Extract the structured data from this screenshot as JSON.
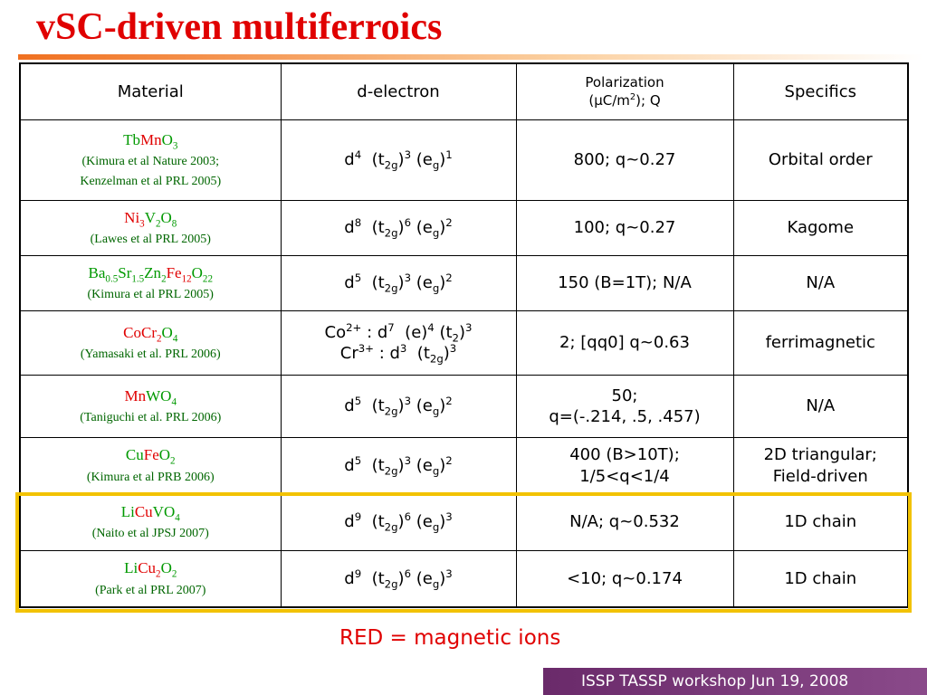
{
  "header": {
    "title": "vSC-driven multiferroics"
  },
  "table": {
    "header": [
      [
        [
          {
            "text": "Material"
          }
        ]
      ],
      [
        [
          {
            "text": "d-electron"
          }
        ]
      ],
      [
        [
          {
            "text": "Polarization"
          }
        ],
        [
          {
            "text": "(μC/m"
          },
          {
            "text": "2",
            "pos": "sup"
          },
          {
            "text": "); Q"
          }
        ]
      ],
      [
        [
          {
            "text": "Specifics"
          }
        ]
      ]
    ],
    "rows": [
      [
        [
          [
            {
              "text": "Tb",
              "color": "#009900"
            },
            {
              "text": "Mn",
              "color": "#e00000"
            },
            {
              "text": "O",
              "color": "#009900"
            },
            {
              "text": "3",
              "pos": "sub",
              "color": "#009900"
            }
          ],
          [
            {
              "text": "(Kimura et al Nature 2003;",
              "color": "#006600"
            }
          ],
          [
            {
              "text": "Kenzelman et al PRL 2005)",
              "color": "#006600"
            }
          ]
        ],
        [
          [
            {
              "text": "d"
            },
            {
              "text": "4",
              "pos": "sup"
            },
            {
              "text": "  (t"
            },
            {
              "text": "2g",
              "pos": "sub"
            },
            {
              "text": ")"
            },
            {
              "text": "3",
              "pos": "sup"
            },
            {
              "text": " (e"
            },
            {
              "text": "g",
              "pos": "sub"
            },
            {
              "text": ")"
            },
            {
              "text": "1",
              "pos": "sup"
            }
          ]
        ],
        [
          [
            {
              "text": "800; q~0.27"
            }
          ]
        ],
        [
          [
            {
              "text": "Orbital order"
            }
          ]
        ]
      ],
      [
        [
          [
            {
              "text": "Ni",
              "color": "#e00000"
            },
            {
              "text": "3",
              "pos": "sub",
              "color": "#e00000"
            },
            {
              "text": "V",
              "color": "#009900"
            },
            {
              "text": "2",
              "pos": "sub",
              "color": "#009900"
            },
            {
              "text": "O",
              "color": "#009900"
            },
            {
              "text": "8",
              "pos": "sub",
              "color": "#009900"
            }
          ],
          [
            {
              "text": "(Lawes et al PRL 2005)",
              "color": "#006600"
            }
          ]
        ],
        [
          [
            {
              "text": "d"
            },
            {
              "text": "8",
              "pos": "sup"
            },
            {
              "text": "  (t"
            },
            {
              "text": "2g",
              "pos": "sub"
            },
            {
              "text": ")"
            },
            {
              "text": "6",
              "pos": "sup"
            },
            {
              "text": " (e"
            },
            {
              "text": "g",
              "pos": "sub"
            },
            {
              "text": ")"
            },
            {
              "text": "2",
              "pos": "sup"
            }
          ]
        ],
        [
          [
            {
              "text": "100; q~0.27"
            }
          ]
        ],
        [
          [
            {
              "text": "Kagome"
            }
          ]
        ]
      ],
      [
        [
          [
            {
              "text": "Ba",
              "color": "#009900"
            },
            {
              "text": "0.5",
              "pos": "sub",
              "color": "#009900"
            },
            {
              "text": "Sr",
              "color": "#009900"
            },
            {
              "text": "1.5",
              "pos": "sub",
              "color": "#009900"
            },
            {
              "text": "Zn",
              "color": "#009900"
            },
            {
              "text": "2",
              "pos": "sub",
              "color": "#009900"
            },
            {
              "text": "Fe",
              "color": "#e00000"
            },
            {
              "text": "12",
              "pos": "sub",
              "color": "#e00000"
            },
            {
              "text": "O",
              "color": "#009900"
            },
            {
              "text": "22",
              "pos": "sub",
              "color": "#009900"
            }
          ],
          [
            {
              "text": "(Kimura et al PRL 2005)",
              "color": "#006600"
            }
          ]
        ],
        [
          [
            {
              "text": "d"
            },
            {
              "text": "5",
              "pos": "sup"
            },
            {
              "text": "  (t"
            },
            {
              "text": "2g",
              "pos": "sub"
            },
            {
              "text": ")"
            },
            {
              "text": "3",
              "pos": "sup"
            },
            {
              "text": " (e"
            },
            {
              "text": "g",
              "pos": "sub"
            },
            {
              "text": ")"
            },
            {
              "text": "2",
              "pos": "sup"
            }
          ]
        ],
        [
          [
            {
              "text": "150 (B=1T); N/A"
            }
          ]
        ],
        [
          [
            {
              "text": "N/A"
            }
          ]
        ]
      ],
      [
        [
          [
            {
              "text": "Co",
              "color": "#e00000"
            },
            {
              "text": "Cr",
              "color": "#e00000"
            },
            {
              "text": "2",
              "pos": "sub",
              "color": "#e00000"
            },
            {
              "text": "O",
              "color": "#009900"
            },
            {
              "text": "4",
              "pos": "sub",
              "color": "#009900"
            }
          ],
          [
            {
              "text": "(Yamasaki et al. PRL 2006)",
              "color": "#006600"
            }
          ]
        ],
        [
          [
            {
              "text": "Co"
            },
            {
              "text": "2+",
              "pos": "sup"
            },
            {
              "text": " : d"
            },
            {
              "text": "7",
              "pos": "sup"
            },
            {
              "text": "  (e)"
            },
            {
              "text": "4",
              "pos": "sup"
            },
            {
              "text": " (t"
            },
            {
              "text": "2",
              "pos": "sub"
            },
            {
              "text": ")"
            },
            {
              "text": "3",
              "pos": "sup"
            }
          ],
          [
            {
              "text": "Cr"
            },
            {
              "text": "3+",
              "pos": "sup"
            },
            {
              "text": " : d"
            },
            {
              "text": "3",
              "pos": "sup"
            },
            {
              "text": "  (t"
            },
            {
              "text": "2g",
              "pos": "sub"
            },
            {
              "text": ")"
            },
            {
              "text": "3",
              "pos": "sup"
            }
          ]
        ],
        [
          [
            {
              "text": "2; [qq0] q~0.63"
            }
          ]
        ],
        [
          [
            {
              "text": "ferrimagnetic"
            }
          ]
        ]
      ],
      [
        [
          [
            {
              "text": "Mn",
              "color": "#e00000"
            },
            {
              "text": "WO",
              "color": "#009900"
            },
            {
              "text": "4",
              "pos": "sub",
              "color": "#009900"
            }
          ],
          [
            {
              "text": "(Taniguchi et al. PRL 2006)",
              "color": "#006600"
            }
          ]
        ],
        [
          [
            {
              "text": "d"
            },
            {
              "text": "5",
              "pos": "sup"
            },
            {
              "text": "  (t"
            },
            {
              "text": "2g",
              "pos": "sub"
            },
            {
              "text": ")"
            },
            {
              "text": "3",
              "pos": "sup"
            },
            {
              "text": " (e"
            },
            {
              "text": "g",
              "pos": "sub"
            },
            {
              "text": ")"
            },
            {
              "text": "2",
              "pos": "sup"
            }
          ]
        ],
        [
          [
            {
              "text": "50;"
            }
          ],
          [
            {
              "text": "q=(-.214, .5, .457)"
            }
          ]
        ],
        [
          [
            {
              "text": "N/A"
            }
          ]
        ]
      ],
      [
        [
          [
            {
              "text": "Cu",
              "color": "#009900"
            },
            {
              "text": "Fe",
              "color": "#e00000"
            },
            {
              "text": "O",
              "color": "#009900"
            },
            {
              "text": "2",
              "pos": "sub",
              "color": "#009900"
            }
          ],
          [
            {
              "text": "(Kimura et al PRB 2006)",
              "color": "#006600"
            }
          ]
        ],
        [
          [
            {
              "text": "d"
            },
            {
              "text": "5",
              "pos": "sup"
            },
            {
              "text": "  (t"
            },
            {
              "text": "2g",
              "pos": "sub"
            },
            {
              "text": ")"
            },
            {
              "text": "3",
              "pos": "sup"
            },
            {
              "text": " (e"
            },
            {
              "text": "g",
              "pos": "sub"
            },
            {
              "text": ")"
            },
            {
              "text": "2",
              "pos": "sup"
            }
          ]
        ],
        [
          [
            {
              "text": "400 (B>10T);"
            }
          ],
          [
            {
              "text": "1/5<q<1/4"
            }
          ]
        ],
        [
          [
            {
              "text": "2D triangular;"
            }
          ],
          [
            {
              "text": "Field-driven"
            }
          ]
        ]
      ],
      [
        [
          [
            {
              "text": "Li",
              "color": "#009900"
            },
            {
              "text": "Cu",
              "color": "#e00000"
            },
            {
              "text": "VO",
              "color": "#009900"
            },
            {
              "text": "4",
              "pos": "sub",
              "color": "#009900"
            }
          ],
          [
            {
              "text": "(Naito et al JPSJ 2007)",
              "color": "#006600"
            }
          ]
        ],
        [
          [
            {
              "text": "d"
            },
            {
              "text": "9",
              "pos": "sup"
            },
            {
              "text": "  (t"
            },
            {
              "text": "2g",
              "pos": "sub"
            },
            {
              "text": ")"
            },
            {
              "text": "6",
              "pos": "sup"
            },
            {
              "text": " (e"
            },
            {
              "text": "g",
              "pos": "sub"
            },
            {
              "text": ")"
            },
            {
              "text": "3",
              "pos": "sup"
            }
          ]
        ],
        [
          [
            {
              "text": "N/A; q~0.532"
            }
          ]
        ],
        [
          [
            {
              "text": "1D chain"
            }
          ]
        ]
      ],
      [
        [
          [
            {
              "text": "Li",
              "color": "#009900"
            },
            {
              "text": "Cu",
              "color": "#e00000"
            },
            {
              "text": "2",
              "pos": "sub",
              "color": "#e00000"
            },
            {
              "text": "O",
              "color": "#009900"
            },
            {
              "text": "2",
              "pos": "sub",
              "color": "#009900"
            }
          ],
          [
            {
              "text": "(Park et al PRL 2007)",
              "color": "#006600"
            }
          ]
        ],
        [
          [
            {
              "text": "d"
            },
            {
              "text": "9",
              "pos": "sup"
            },
            {
              "text": "  (t"
            },
            {
              "text": "2g",
              "pos": "sub"
            },
            {
              "text": ")"
            },
            {
              "text": "6",
              "pos": "sup"
            },
            {
              "text": " (e"
            },
            {
              "text": "g",
              "pos": "sub"
            },
            {
              "text": ")"
            },
            {
              "text": "3",
              "pos": "sup"
            }
          ]
        ],
        [
          [
            {
              "text": "<10; q~0.174"
            }
          ]
        ],
        [
          [
            {
              "text": "1D chain"
            }
          ]
        ]
      ]
    ]
  },
  "note": "RED = magnetic ions",
  "footer": "ISSP TASSP workshop  Jun 19, 2008"
}
